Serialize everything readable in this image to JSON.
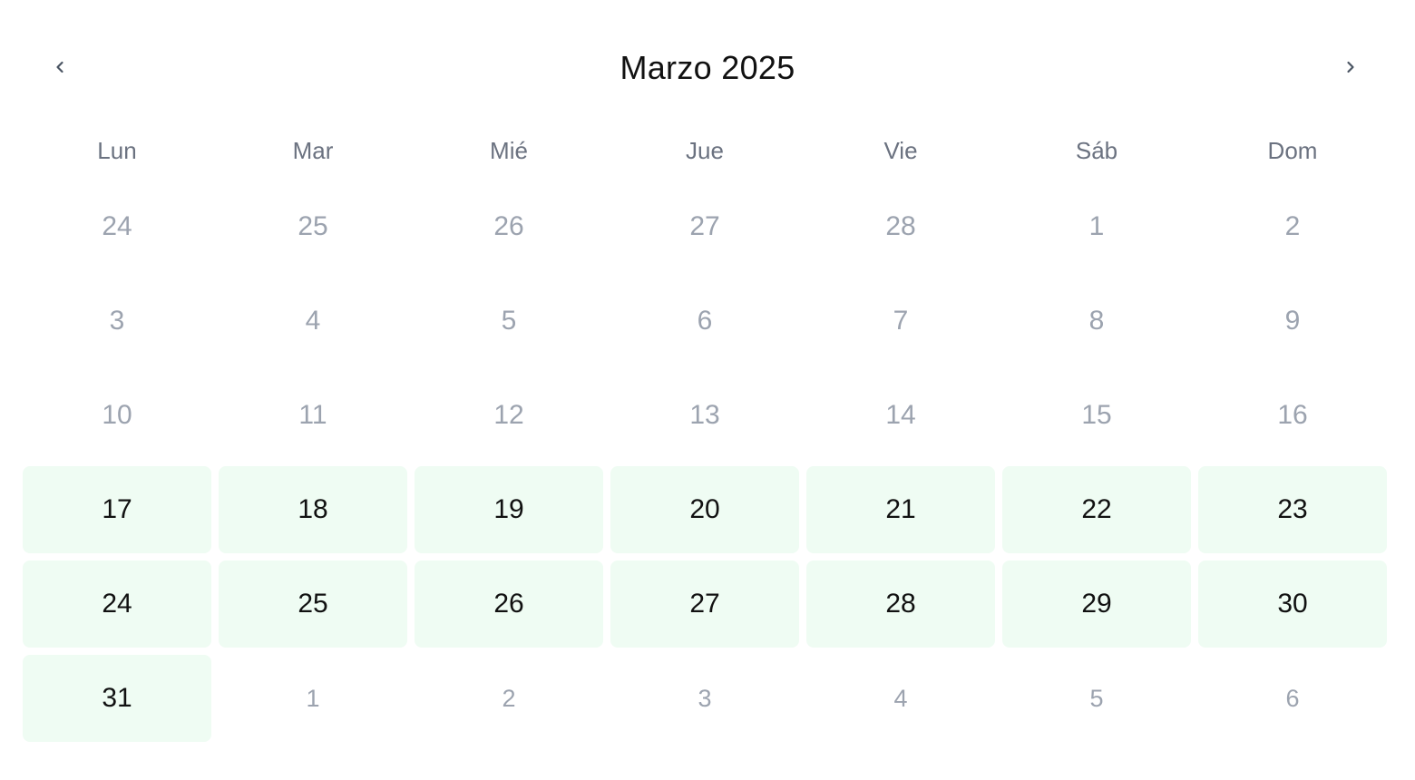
{
  "calendar": {
    "title": "Marzo 2025",
    "prev_icon": "chevron-left-icon",
    "next_icon": "chevron-right-icon",
    "weekdays": [
      "Lun",
      "Mar",
      "Mié",
      "Jue",
      "Vie",
      "Sáb",
      "Dom"
    ],
    "highlight_color": "#effcf3",
    "days": [
      {
        "label": "24",
        "state": "disabled"
      },
      {
        "label": "25",
        "state": "disabled"
      },
      {
        "label": "26",
        "state": "disabled"
      },
      {
        "label": "27",
        "state": "disabled"
      },
      {
        "label": "28",
        "state": "disabled"
      },
      {
        "label": "1",
        "state": "disabled"
      },
      {
        "label": "2",
        "state": "disabled"
      },
      {
        "label": "3",
        "state": "disabled"
      },
      {
        "label": "4",
        "state": "disabled"
      },
      {
        "label": "5",
        "state": "disabled"
      },
      {
        "label": "6",
        "state": "disabled"
      },
      {
        "label": "7",
        "state": "disabled"
      },
      {
        "label": "8",
        "state": "disabled"
      },
      {
        "label": "9",
        "state": "disabled"
      },
      {
        "label": "10",
        "state": "disabled"
      },
      {
        "label": "11",
        "state": "disabled"
      },
      {
        "label": "12",
        "state": "disabled"
      },
      {
        "label": "13",
        "state": "disabled"
      },
      {
        "label": "14",
        "state": "disabled"
      },
      {
        "label": "15",
        "state": "disabled"
      },
      {
        "label": "16",
        "state": "disabled"
      },
      {
        "label": "17",
        "state": "available"
      },
      {
        "label": "18",
        "state": "available"
      },
      {
        "label": "19",
        "state": "available"
      },
      {
        "label": "20",
        "state": "available"
      },
      {
        "label": "21",
        "state": "available"
      },
      {
        "label": "22",
        "state": "available"
      },
      {
        "label": "23",
        "state": "available"
      },
      {
        "label": "24",
        "state": "available"
      },
      {
        "label": "25",
        "state": "available"
      },
      {
        "label": "26",
        "state": "available"
      },
      {
        "label": "27",
        "state": "available"
      },
      {
        "label": "28",
        "state": "available"
      },
      {
        "label": "29",
        "state": "available"
      },
      {
        "label": "30",
        "state": "available"
      },
      {
        "label": "31",
        "state": "available"
      },
      {
        "label": "1",
        "state": "next-month"
      },
      {
        "label": "2",
        "state": "next-month"
      },
      {
        "label": "3",
        "state": "next-month"
      },
      {
        "label": "4",
        "state": "next-month"
      },
      {
        "label": "5",
        "state": "next-month"
      },
      {
        "label": "6",
        "state": "next-month"
      }
    ]
  }
}
